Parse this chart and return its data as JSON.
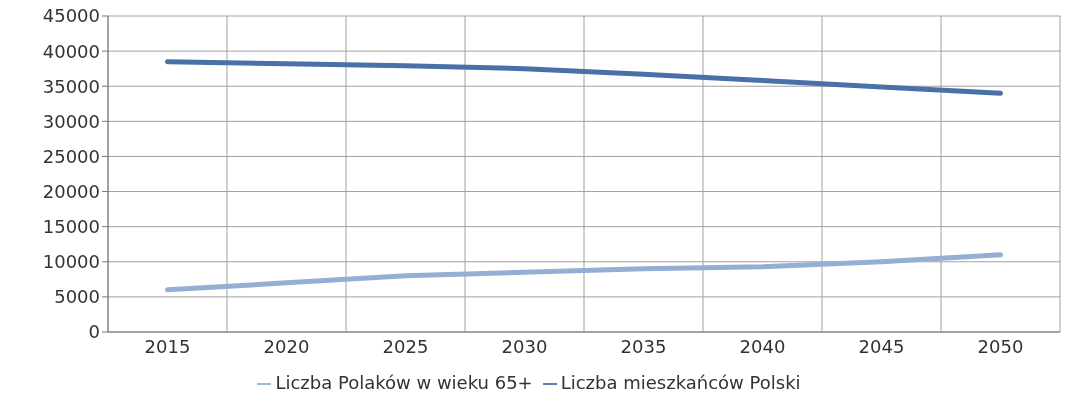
{
  "chart_data": {
    "type": "line",
    "categories": [
      "2015",
      "2020",
      "2025",
      "2030",
      "2035",
      "2040",
      "2045",
      "2050"
    ],
    "series": [
      {
        "name": "Liczba mieszkańców Polski",
        "color": "#4a70a8",
        "values": [
          38500,
          38200,
          37900,
          37500,
          36700,
          35800,
          34900,
          34000
        ]
      },
      {
        "name": "Liczba Polaków w wieku 65+",
        "color": "#95aed4",
        "values": [
          6000,
          7000,
          8000,
          8500,
          9000,
          9300,
          10000,
          11000
        ]
      }
    ],
    "ylim": [
      0,
      45000
    ],
    "yticks": [
      0,
      5000,
      10000,
      15000,
      20000,
      25000,
      30000,
      35000,
      40000,
      45000
    ],
    "grid": true,
    "legend": "bottom",
    "marker": "none",
    "line_style": "solid"
  }
}
